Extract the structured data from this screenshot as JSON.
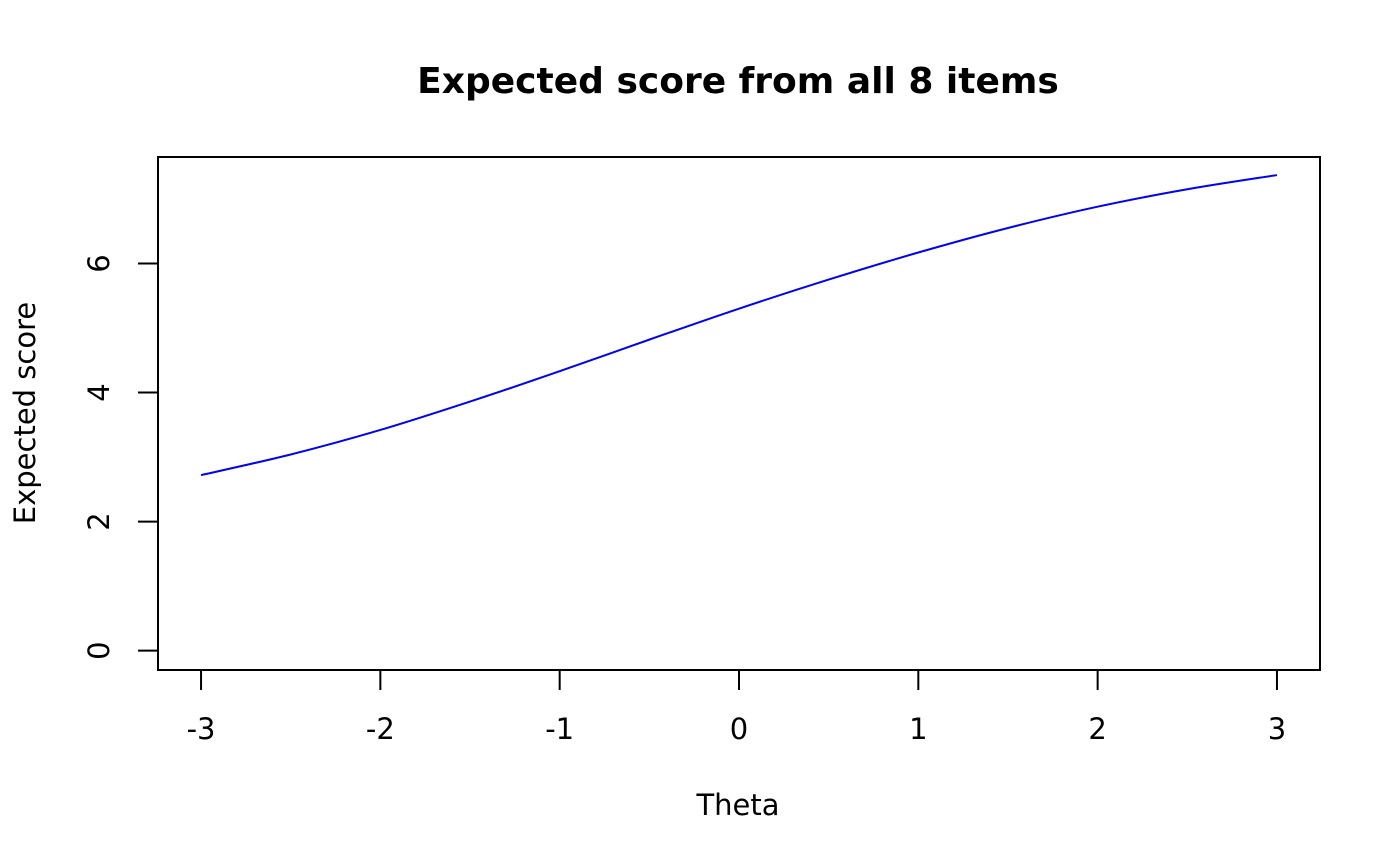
{
  "chart_data": {
    "type": "line",
    "title": "Expected score from all 8 items",
    "xlabel": "Theta",
    "ylabel": "Expected score",
    "xlim": [
      -3.24,
      3.24
    ],
    "ylim": [
      -0.3,
      7.65
    ],
    "x_ticks": [
      -3,
      -2,
      -1,
      0,
      1,
      2,
      3
    ],
    "x_tick_labels": [
      "-3",
      "-2",
      "-1",
      "0",
      "1",
      "2",
      "3"
    ],
    "y_ticks": [
      0,
      2,
      4,
      6
    ],
    "y_tick_labels": [
      "0",
      "2",
      "4",
      "6"
    ],
    "grid": false,
    "legend": "none",
    "series": [
      {
        "color": "#0000ee",
        "x": [
          -3.0,
          -2.5,
          -2.0,
          -1.5,
          -1.0,
          -0.5,
          0.0,
          0.5,
          1.0,
          1.5,
          2.0,
          2.5,
          3.0
        ],
        "y": [
          2.72,
          3.04,
          3.42,
          3.86,
          4.33,
          4.82,
          5.3,
          5.75,
          6.17,
          6.55,
          6.88,
          7.15,
          7.37
        ]
      }
    ]
  }
}
